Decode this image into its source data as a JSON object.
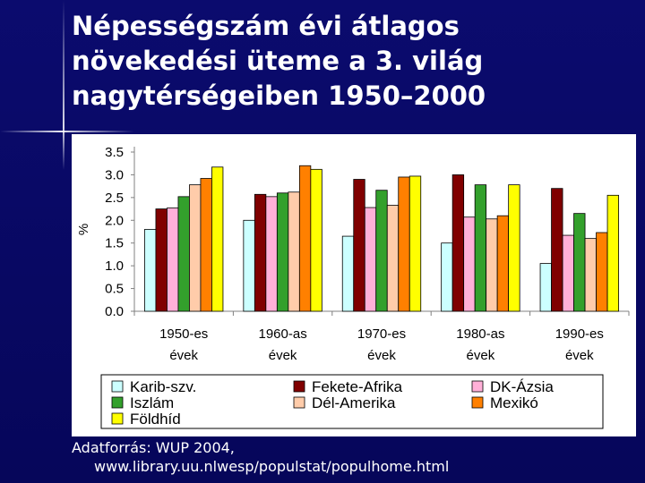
{
  "slide": {
    "title_lines": [
      "Népességszám évi átlagos",
      "növekedési üteme a 3. világ",
      "nagytérségeiben 1950–2000"
    ],
    "source_line1": "Adatforrás: WUP 2004,",
    "source_line2": "www.library.uu.nlwesp/populstat/populhome.html"
  },
  "chart_data": {
    "type": "bar",
    "title": "Népességszám évi átlagos növekedési üteme a 3. világ nagytérségeiben 1950–2000",
    "ylabel": "%",
    "xlabel": "",
    "ylim": [
      0,
      3.5
    ],
    "yticks": [
      "0.0",
      "0.5",
      "1.0",
      "1.5",
      "2.0",
      "2.5",
      "3.0",
      "3.5"
    ],
    "grid": false,
    "legend_position": "bottom",
    "categories": [
      [
        "1950-es",
        "évek"
      ],
      [
        "1960-as",
        "évek"
      ],
      [
        "1970-es",
        "évek"
      ],
      [
        "1980-as",
        "évek"
      ],
      [
        "1990-es",
        "évek"
      ]
    ],
    "series": [
      {
        "name": "Karib-szv.",
        "color": "#ccffff",
        "values": [
          1.8,
          2.0,
          1.65,
          1.5,
          1.05
        ]
      },
      {
        "name": "Fekete-Afrika",
        "color": "#800000",
        "values": [
          2.25,
          2.57,
          2.9,
          3.0,
          2.7
        ]
      },
      {
        "name": "DK-Ázsia",
        "color": "#ffb0d8",
        "values": [
          2.27,
          2.52,
          2.28,
          2.07,
          1.67
        ]
      },
      {
        "name": "Iszlám",
        "color": "#33a02c",
        "values": [
          2.52,
          2.6,
          2.66,
          2.78,
          2.15
        ]
      },
      {
        "name": "Dél-Amerika",
        "color": "#ffccaa",
        "values": [
          2.78,
          2.62,
          2.33,
          2.03,
          1.6
        ]
      },
      {
        "name": "Mexikó",
        "color": "#ff8000",
        "values": [
          2.92,
          3.2,
          2.95,
          2.1,
          1.73
        ]
      },
      {
        "name": "Földhíd",
        "color": "#ffff00",
        "values": [
          3.17,
          3.12,
          2.97,
          2.78,
          2.55
        ]
      }
    ],
    "bar_order": [
      "Karib-szv.",
      "Fekete-Afrika",
      "DK-Ázsia",
      "Iszlám",
      "Dél-Amerika",
      "Mexikó",
      "Földhíd"
    ],
    "legend_layout": [
      [
        "Karib-szv.",
        "Fekete-Afrika",
        "DK-Ázsia"
      ],
      [
        "Iszlám",
        "Dél-Amerika",
        "Mexikó"
      ],
      [
        "Földhíd"
      ]
    ]
  }
}
